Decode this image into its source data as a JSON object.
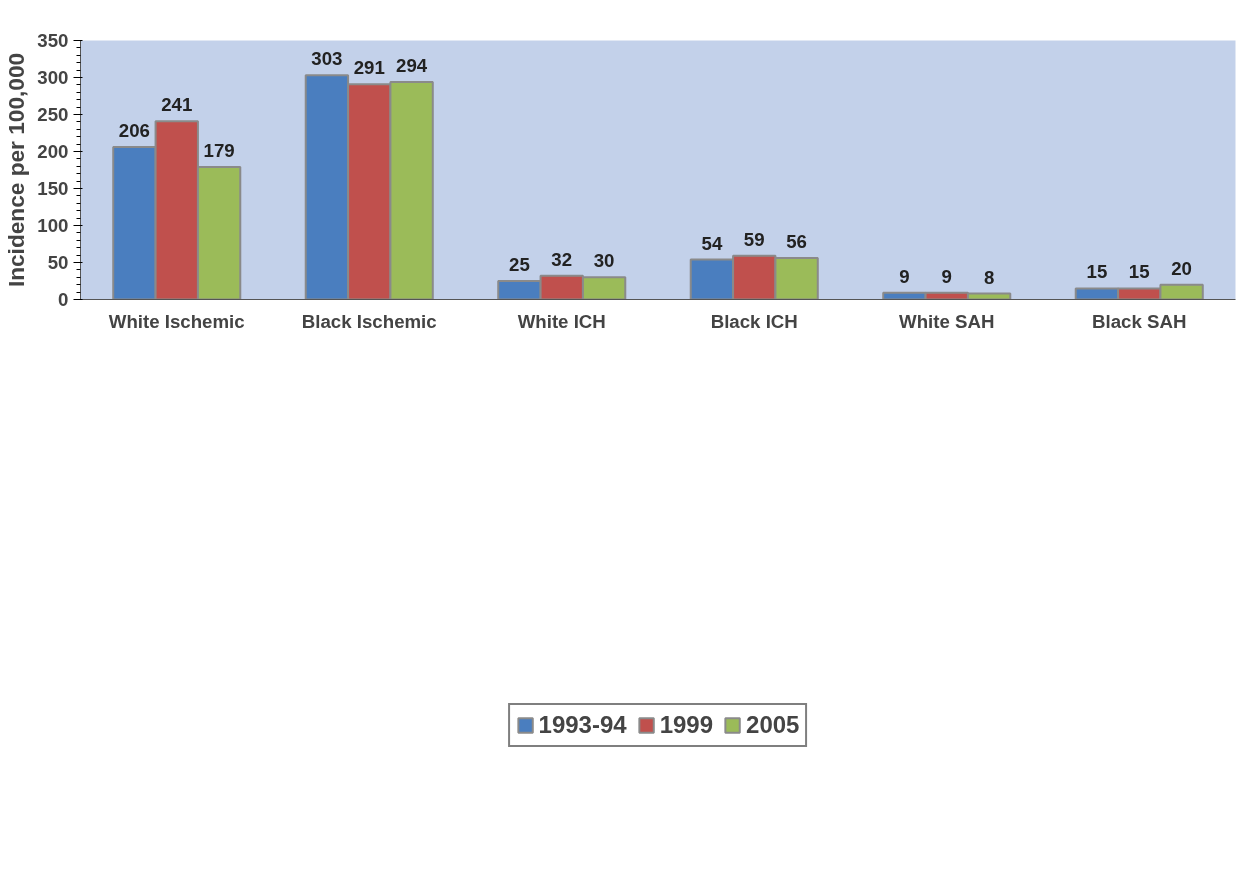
{
  "chart_data": {
    "type": "bar",
    "ylabel": "Incidence per 100,000",
    "categories": [
      "White Ischemic",
      "Black Ischemic",
      "White ICH",
      "Black ICH",
      "White SAH",
      "Black SAH"
    ],
    "series": [
      {
        "name": "1993-94",
        "color": "#4a7ebf",
        "values": [
          206,
          303,
          25,
          54,
          9,
          15
        ]
      },
      {
        "name": "1999",
        "color": "#c0504d",
        "values": [
          241,
          291,
          32,
          59,
          9,
          15
        ]
      },
      {
        "name": "2005",
        "color": "#9bbb59",
        "values": [
          179,
          294,
          30,
          56,
          8,
          20
        ]
      }
    ],
    "ylim": [
      0,
      350
    ],
    "yticks": [
      0,
      50,
      100,
      150,
      200,
      250,
      300,
      350
    ],
    "grid": false,
    "legend": "bottom",
    "data_labels": true
  }
}
